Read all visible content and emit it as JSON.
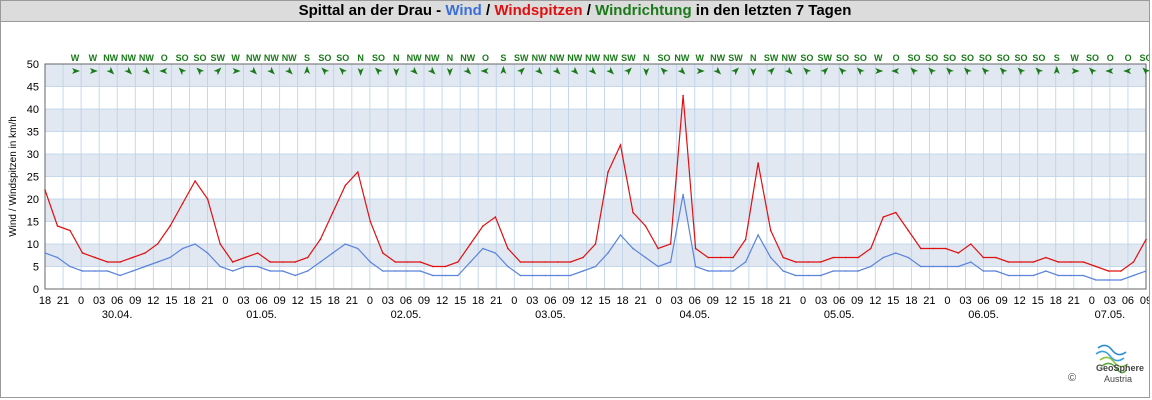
{
  "header": {
    "title_part1": "Spittal an der Drau - ",
    "title_wind": "Wind",
    "sep1": " / ",
    "title_gust": "Windspitzen",
    "sep2": " / ",
    "title_dir": "Windrichtung",
    "title_part2": " in den letzten 7 Tagen"
  },
  "colors": {
    "wind": "#5b84dc",
    "gust": "#e01010",
    "direction": "#1a7a1a",
    "band": "#e2e8f2",
    "grid": "#b8d0e8"
  },
  "logo": {
    "name": "GeoSphere",
    "sub": "Austria",
    "copyright": "©"
  },
  "chart_data": {
    "type": "line",
    "ylabel": "Wind / Windspitzen in km/h",
    "ylim": [
      0,
      50
    ],
    "yticks": [
      0,
      5,
      10,
      15,
      20,
      25,
      30,
      35,
      40,
      45,
      50
    ],
    "hour_ticks": [
      "18",
      "21",
      "0",
      "03",
      "06",
      "09",
      "12",
      "15",
      "18",
      "21",
      "0",
      "03",
      "06",
      "09",
      "12",
      "15",
      "18",
      "21",
      "0",
      "03",
      "06",
      "09",
      "12",
      "15",
      "18",
      "21",
      "0",
      "03",
      "06",
      "09",
      "12",
      "15",
      "18",
      "21",
      "0",
      "03",
      "06",
      "09",
      "12",
      "15",
      "18",
      "21",
      "0",
      "03",
      "06",
      "09",
      "12",
      "15",
      "18",
      "21",
      "0",
      "03",
      "06",
      "09",
      "12",
      "15",
      "18",
      "21",
      "0",
      "03",
      "06",
      "09"
    ],
    "date_labels": [
      "30.04.",
      "01.05.",
      "02.05.",
      "03.05.",
      "04.05.",
      "05.05.",
      "06.05.",
      "07.05."
    ],
    "directions": [
      "W",
      "W",
      "NW",
      "NW",
      "NW",
      "O",
      "SO",
      "SO",
      "SW",
      "W",
      "NW",
      "NW",
      "NW",
      "S",
      "SO",
      "SO",
      "N",
      "SO",
      "N",
      "NW",
      "NW",
      "N",
      "NW",
      "O",
      "S",
      "SW",
      "NW",
      "NW",
      "NW",
      "NW",
      "NW",
      "SW",
      "N",
      "SO",
      "NW",
      "W",
      "NW",
      "SW",
      "N",
      "SW",
      "NW",
      "SO",
      "SW",
      "SO",
      "SO",
      "W",
      "O",
      "SO",
      "SO",
      "SO",
      "SO",
      "SO",
      "SO",
      "SO",
      "SO",
      "S",
      "W",
      "SO",
      "O",
      "O",
      "SO"
    ],
    "series": [
      {
        "name": "Wind",
        "values": [
          8,
          7,
          5,
          4,
          4,
          4,
          3,
          4,
          5,
          6,
          7,
          9,
          10,
          8,
          5,
          4,
          5,
          5,
          4,
          4,
          3,
          4,
          6,
          8,
          10,
          9,
          6,
          4,
          4,
          4,
          4,
          3,
          3,
          3,
          6,
          9,
          8,
          5,
          3,
          3,
          3,
          3,
          3,
          4,
          5,
          8,
          12,
          9,
          7,
          5,
          6,
          21,
          5,
          4,
          4,
          4,
          6,
          12,
          7,
          4,
          3,
          3,
          3,
          4,
          4,
          4,
          5,
          7,
          8,
          7,
          5,
          5,
          5,
          5,
          6,
          4,
          4,
          3,
          3,
          3,
          4,
          3,
          3,
          3,
          2,
          2,
          2,
          3,
          4
        ]
      },
      {
        "name": "Windspitzen",
        "values": [
          22,
          14,
          13,
          8,
          7,
          6,
          6,
          7,
          8,
          10,
          14,
          19,
          24,
          20,
          10,
          6,
          7,
          8,
          6,
          6,
          6,
          7,
          11,
          17,
          23,
          26,
          15,
          8,
          6,
          6,
          6,
          5,
          5,
          6,
          10,
          14,
          16,
          9,
          6,
          6,
          6,
          6,
          6,
          7,
          10,
          26,
          32,
          17,
          14,
          9,
          10,
          43,
          9,
          7,
          7,
          7,
          11,
          28,
          13,
          7,
          6,
          6,
          6,
          7,
          7,
          7,
          9,
          16,
          17,
          13,
          9,
          9,
          9,
          8,
          10,
          7,
          7,
          6,
          6,
          6,
          7,
          6,
          6,
          6,
          5,
          4,
          4,
          6,
          11
        ]
      }
    ]
  }
}
